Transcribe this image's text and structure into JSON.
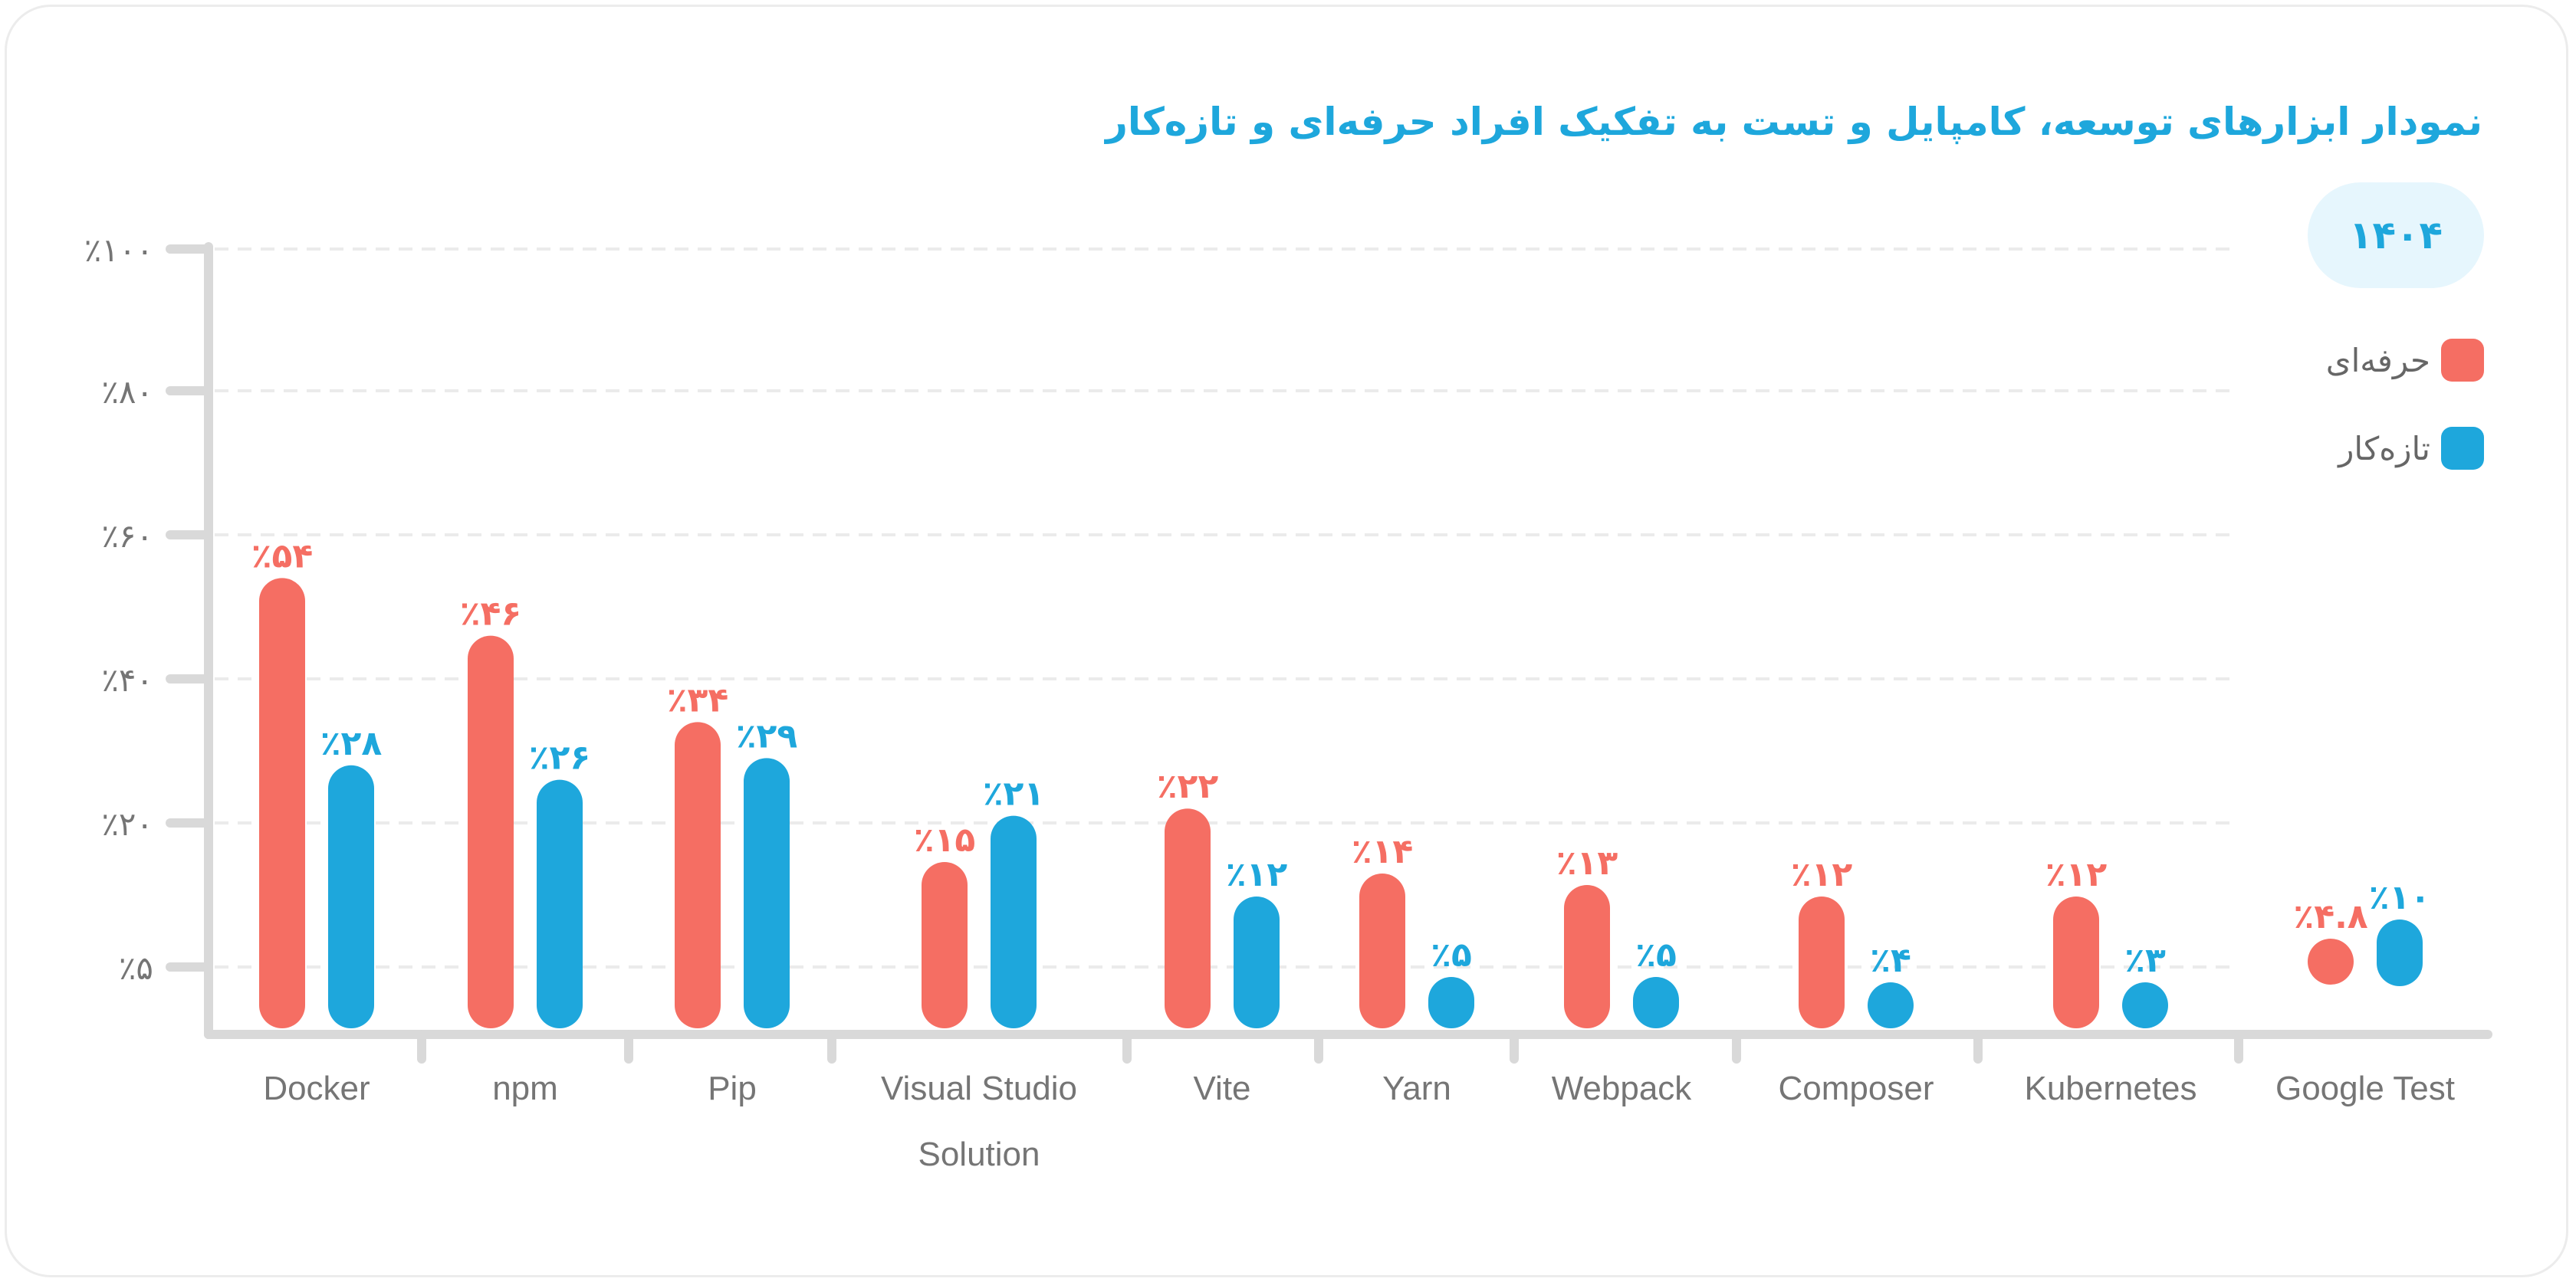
{
  "chart_data": {
    "type": "bar",
    "title": "نمودار ابزارهای توسعه، کامپایل و تست به تفکیک افراد حرفه‌ای و تازه‌کار",
    "badge": "۱۴۰۴",
    "categories": [
      "Docker",
      "npm",
      "Pip",
      "Visual Studio Solution",
      "Vite",
      "Yarn",
      "Webpack",
      "Composer",
      "Kubernetes",
      "Google Test"
    ],
    "series": [
      {
        "name": "حرفه‌ای",
        "color": "#f56e63",
        "values": [
          54,
          46,
          34,
          15,
          22,
          14,
          13,
          12,
          12,
          4.8
        ],
        "labels": [
          "٪۵۴",
          "٪۴۶",
          "٪۳۴",
          "٪۱۵",
          "٪۲۲",
          "٪۱۴",
          "٪۱۳",
          "٪۱۲",
          "٪۱۲",
          "٪۴.۸"
        ]
      },
      {
        "name": "تازه‌کار",
        "color": "#1ea7dc",
        "values": [
          28,
          26,
          29,
          21,
          12,
          5,
          5,
          4,
          3,
          10
        ],
        "labels": [
          "٪۲۸",
          "٪۲۶",
          "٪۲۹",
          "٪۲۱",
          "٪۱۲",
          "٪۵",
          "٪۵",
          "٪۴",
          "٪۳",
          "٪۱۰"
        ]
      }
    ],
    "y_ticks": [
      {
        "value": 100,
        "label": "٪۱۰۰"
      },
      {
        "value": 80,
        "label": "٪۸۰"
      },
      {
        "value": 60,
        "label": "٪۶۰"
      },
      {
        "value": 40,
        "label": "٪۴۰"
      },
      {
        "value": 20,
        "label": "٪۲۰"
      },
      {
        "value": 5,
        "label": "٪۵"
      }
    ],
    "ylim": [
      0,
      100
    ],
    "grid": true,
    "legend_position": "right"
  }
}
